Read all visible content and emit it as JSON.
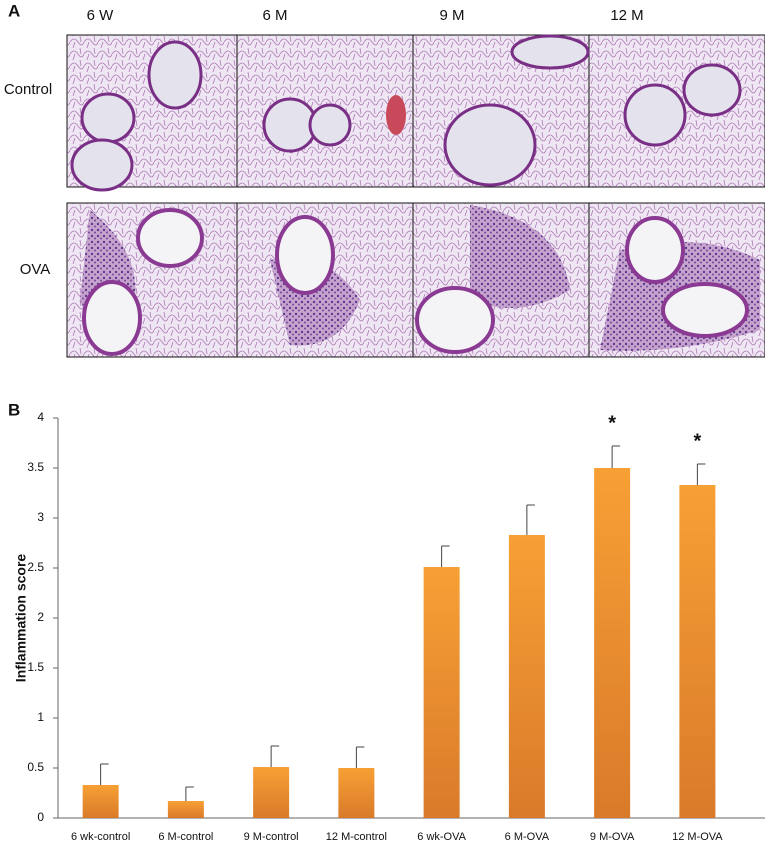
{
  "panel_a": {
    "label": "A",
    "columns": [
      "6 W",
      "6 M",
      "9 M",
      "12 M"
    ],
    "rows": [
      "Control",
      "OVA"
    ]
  },
  "chart_data": {
    "type": "bar",
    "panel_label": "B",
    "y_label": "Inflammation score",
    "categories": [
      "6 wk-control",
      "6 M-control",
      "9 M-control",
      "12 M-control",
      "6 wk-OVA",
      "6 M-OVA",
      "9 M-OVA",
      "12 M-OVA"
    ],
    "values": [
      0.33,
      0.17,
      0.51,
      0.5,
      2.51,
      2.83,
      3.5,
      3.33
    ],
    "errors": [
      0.21,
      0.14,
      0.21,
      0.21,
      0.21,
      0.3,
      0.22,
      0.21
    ],
    "color": "#f7a035",
    "annotations": [
      {
        "text": "*",
        "category": "9 M-OVA"
      },
      {
        "text": "*",
        "category": "12 M-OVA"
      }
    ],
    "ylim": [
      0,
      4
    ],
    "yticks": [
      0,
      0.5,
      1,
      1.5,
      2,
      2.5,
      3,
      3.5,
      4
    ],
    "grid": false
  }
}
